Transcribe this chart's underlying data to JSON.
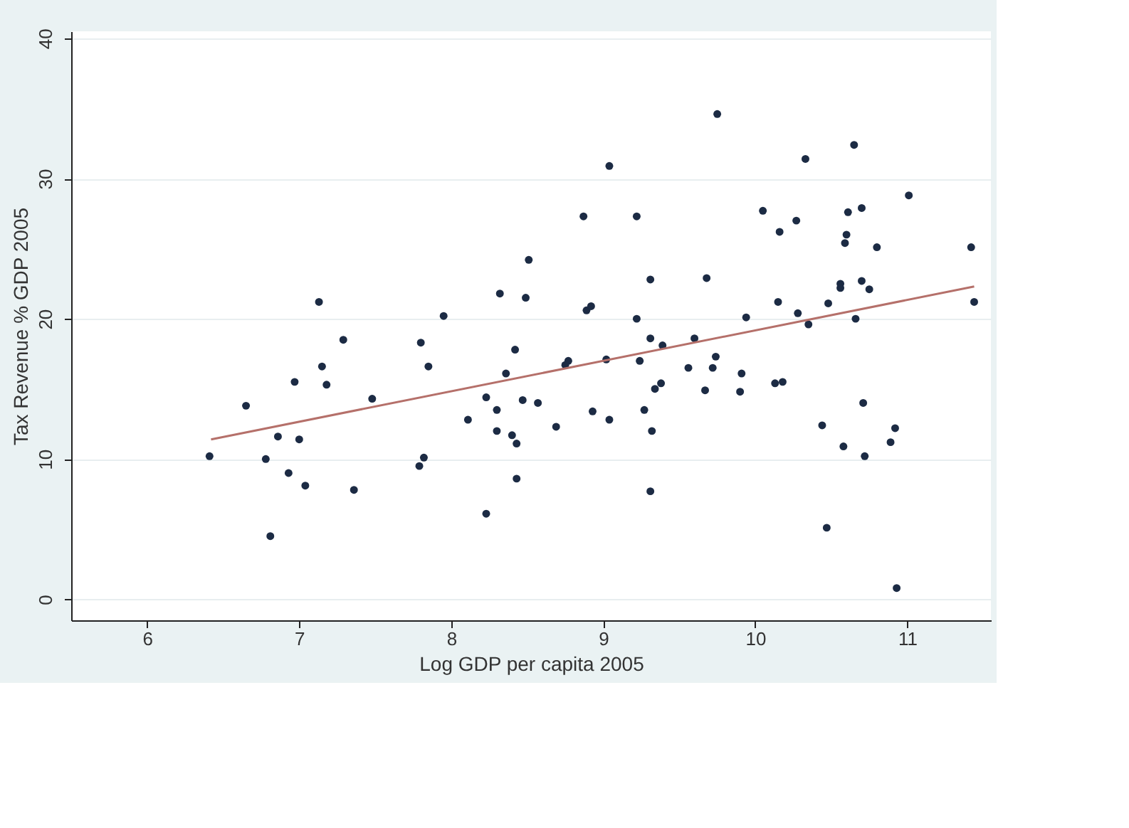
{
  "chart_data": {
    "type": "scatter",
    "xlabel": "Log GDP per capita 2005",
    "ylabel": "Tax Revenue % GDP 2005",
    "xlim": [
      5.5,
      11.55
    ],
    "ylim": [
      -1.5,
      40.5
    ],
    "xticks": [
      6,
      7,
      8,
      9,
      10,
      11
    ],
    "yticks": [
      0,
      10,
      20,
      30,
      40
    ],
    "grid": "y",
    "marker": "circle",
    "series": [
      {
        "color": "#1c2b44",
        "x": [
          6.41,
          6.65,
          6.78,
          6.81,
          6.86,
          6.93,
          6.97,
          7.0,
          7.04,
          7.13,
          7.15,
          7.18,
          7.29,
          7.36,
          7.48,
          7.8,
          7.79,
          7.82,
          7.85,
          7.95,
          8.23,
          8.23,
          8.3,
          8.3,
          8.11,
          8.32,
          8.36,
          8.42,
          8.4,
          8.43,
          8.43,
          9.75,
          9.04,
          8.87,
          9.22,
          10.05,
          8.51,
          8.49,
          9.31,
          9.68,
          8.89,
          8.92,
          9.22,
          9.94,
          9.31,
          9.39,
          9.6,
          9.74,
          9.72,
          9.56,
          9.91,
          9.24,
          9.02,
          8.77,
          8.75,
          8.47,
          8.57,
          8.69,
          8.93,
          9.04,
          9.27,
          9.32,
          9.34,
          9.38,
          9.67,
          9.9,
          9.31,
          10.65,
          10.33,
          11.01,
          10.27,
          10.16,
          10.61,
          10.7,
          10.6,
          10.59,
          10.8,
          11.42,
          10.56,
          10.56,
          10.7,
          10.75,
          11.44,
          10.15,
          10.48,
          10.28,
          10.35,
          10.66,
          10.13,
          10.18,
          10.71,
          10.44,
          10.92,
          10.89,
          10.58,
          10.72,
          10.47,
          10.93
        ],
        "values": [
          10.2,
          13.8,
          10.0,
          4.5,
          11.6,
          9.0,
          15.5,
          11.4,
          8.1,
          21.2,
          16.6,
          15.3,
          18.5,
          7.8,
          14.3,
          18.3,
          9.5,
          10.1,
          16.6,
          20.2,
          6.1,
          14.4,
          13.5,
          12.0,
          12.8,
          21.8,
          16.1,
          17.8,
          11.7,
          11.1,
          8.6,
          34.6,
          30.9,
          27.3,
          27.3,
          27.7,
          24.2,
          21.5,
          22.8,
          22.9,
          20.6,
          20.9,
          20.0,
          20.1,
          18.6,
          18.1,
          18.6,
          17.3,
          16.5,
          16.5,
          16.1,
          17.0,
          17.1,
          17.0,
          16.7,
          14.2,
          14.0,
          12.3,
          13.4,
          12.8,
          13.5,
          12.0,
          15.0,
          15.4,
          14.9,
          14.8,
          7.7,
          32.4,
          31.4,
          28.8,
          27.0,
          26.2,
          27.6,
          27.9,
          26.0,
          25.4,
          25.1,
          25.1,
          22.5,
          22.2,
          22.7,
          22.1,
          21.2,
          21.2,
          21.1,
          20.4,
          19.6,
          20.0,
          15.4,
          15.5,
          14.0,
          12.4,
          12.2,
          11.2,
          10.9,
          10.2,
          5.1,
          0.8
        ]
      },
      {
        "type": "line",
        "marker": "none",
        "color": "#b5706a",
        "x": [
          6.42,
          11.44
        ],
        "values": [
          11.4,
          22.3
        ]
      }
    ]
  }
}
